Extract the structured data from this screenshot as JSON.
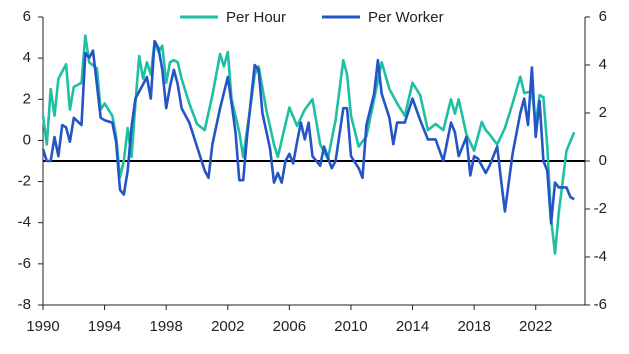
{
  "chart_data": {
    "type": "line",
    "xlim": [
      1990,
      2025.2
    ],
    "xticks": [
      1990,
      1994,
      1998,
      2002,
      2006,
      2010,
      2014,
      2018,
      2022
    ],
    "ylim": [
      -8,
      6
    ],
    "yticks": [
      -8,
      -6,
      -4,
      -2,
      0,
      2,
      4,
      6
    ],
    "y2lim": [
      -6,
      6
    ],
    "y2ticks": [
      -6,
      -4,
      -2,
      0,
      2,
      4,
      6
    ],
    "legend": "top",
    "series": [
      {
        "name": "Per Hour",
        "color": "#1fbfa3",
        "x": [
          1990,
          1990.25,
          1990.5,
          1990.75,
          1991,
          1991.5,
          1991.75,
          1992,
          1992.5,
          1992.75,
          1993,
          1993.5,
          1993.75,
          1994,
          1994.5,
          1994.75,
          1995,
          1995.25,
          1995.5,
          1995.75,
          1996,
          1996.25,
          1996.5,
          1996.75,
          1997,
          1997.25,
          1997.5,
          1997.75,
          1998,
          1998.25,
          1998.5,
          1998.75,
          1999,
          1999.5,
          2000,
          2000.5,
          2001,
          2001.5,
          2001.75,
          2002,
          2002.25,
          2002.75,
          2003,
          2003.5,
          2003.75,
          2004,
          2004.5,
          2005,
          2005.25,
          2005.75,
          2006,
          2006.5,
          2007,
          2007.5,
          2008,
          2008.5,
          2009,
          2009.5,
          2009.75,
          2010,
          2010.5,
          2011,
          2011.5,
          2012,
          2012.5,
          2013,
          2013.5,
          2014,
          2014.5,
          2015,
          2015.5,
          2016,
          2016.5,
          2016.75,
          2017,
          2017.5,
          2018,
          2018.5,
          2018.75,
          2019,
          2019.5,
          2020,
          2020.5,
          2021,
          2021.25,
          2021.75,
          2022,
          2022.25,
          2022.5,
          2022.75,
          2023,
          2023.25,
          2023.5,
          2024,
          2024.5
        ],
        "values": [
          1.2,
          -0.2,
          2.5,
          1.2,
          3.0,
          3.7,
          1.5,
          2.6,
          2.8,
          5.1,
          3.8,
          3.5,
          1.5,
          1.8,
          1.2,
          0.2,
          -1.8,
          -1.0,
          0.6,
          -0.8,
          1.8,
          4.1,
          3.0,
          3.8,
          3.2,
          4.8,
          4.3,
          4.6,
          2.8,
          3.8,
          3.9,
          3.8,
          3.0,
          1.8,
          0.8,
          0.5,
          2.2,
          4.2,
          3.6,
          4.3,
          2.0,
          0.4,
          -0.8,
          1.8,
          3.2,
          3.6,
          1.5,
          -0.2,
          -0.8,
          0.8,
          1.6,
          0.7,
          1.5,
          2.0,
          -0.2,
          -0.9,
          1.0,
          3.9,
          3.2,
          1.2,
          -0.3,
          0.2,
          2.0,
          3.8,
          2.5,
          1.8,
          1.2,
          2.8,
          2.2,
          0.5,
          0.8,
          0.5,
          2.0,
          1.3,
          2.0,
          0.3,
          -0.5,
          0.9,
          0.5,
          0.3,
          -0.2,
          0.6,
          1.8,
          3.1,
          2.3,
          2.4,
          0.8,
          2.2,
          2.1,
          -0.3,
          -3.8,
          -5.5,
          -3.5,
          -0.5,
          0.4
        ]
      },
      {
        "name": "Per Worker",
        "color": "#2554c7",
        "axis": "y2",
        "x": [
          1990,
          1990.25,
          1990.5,
          1990.75,
          1991,
          1991.25,
          1991.5,
          1991.75,
          1992,
          1992.5,
          1992.75,
          1993,
          1993.25,
          1993.75,
          1994,
          1994.5,
          1994.75,
          1995,
          1995.25,
          1995.5,
          1995.75,
          1996,
          1996.5,
          1996.75,
          1997,
          1997.25,
          1997.5,
          1997.75,
          1998,
          1998.25,
          1998.5,
          1998.75,
          1999,
          1999.5,
          2000,
          2000.5,
          2000.75,
          2001,
          2001.5,
          2002,
          2002.25,
          2002.5,
          2002.75,
          2003,
          2003.25,
          2003.75,
          2004,
          2004.25,
          2004.75,
          2005,
          2005.25,
          2005.5,
          2005.75,
          2006,
          2006.25,
          2006.5,
          2006.75,
          2007,
          2007.25,
          2007.5,
          2008,
          2008.25,
          2008.75,
          2009,
          2009.5,
          2009.75,
          2010,
          2010.5,
          2010.75,
          2011,
          2011.5,
          2011.75,
          2012,
          2012.5,
          2012.75,
          2013,
          2013.5,
          2014,
          2014.5,
          2015,
          2015.5,
          2016,
          2016.5,
          2016.75,
          2017,
          2017.5,
          2017.75,
          2018,
          2018.25,
          2018.75,
          2019,
          2019.5,
          2019.75,
          2020,
          2020.5,
          2021,
          2021.25,
          2021.5,
          2021.75,
          2022,
          2022.25,
          2022.5,
          2022.75,
          2023,
          2023.25,
          2023.5,
          2024,
          2024.25,
          2024.5
        ],
        "values": [
          0.5,
          0,
          0.0,
          1.0,
          0.2,
          1.5,
          1.4,
          0.8,
          1.8,
          1.5,
          4.5,
          4.3,
          4.6,
          1.8,
          1.7,
          1.6,
          0.8,
          -1.2,
          -1.4,
          -0.4,
          1.4,
          2.6,
          3.2,
          3.5,
          2.6,
          5.0,
          4.7,
          3.8,
          2.2,
          3.1,
          3.8,
          3.2,
          2.2,
          1.6,
          0.6,
          -0.4,
          -0.7,
          0.7,
          2.2,
          3.5,
          2.4,
          1.2,
          -0.8,
          -0.8,
          1.0,
          4.0,
          3.8,
          2.0,
          0.5,
          -0.9,
          -0.5,
          -0.9,
          0,
          0.3,
          -0.1,
          0.8,
          1.6,
          0.9,
          1.6,
          0.2,
          -0.2,
          0.6,
          -0.3,
          0,
          2.2,
          2.2,
          0.2,
          -0.3,
          -0.7,
          1.5,
          2.8,
          4.2,
          2.8,
          1.8,
          0.7,
          1.6,
          1.6,
          2.6,
          1.7,
          0.9,
          0.9,
          0,
          1.6,
          1.2,
          0.2,
          1.0,
          -0.6,
          0.2,
          0.1,
          -0.5,
          -0.2,
          0.6,
          -0.8,
          -2.1,
          0.3,
          2.0,
          2.6,
          1.5,
          3.9,
          1.0,
          2.5,
          0,
          -0.4,
          -2.6,
          -0.9,
          -1.1,
          -1.1,
          -1.5,
          -1.6
        ]
      }
    ]
  }
}
